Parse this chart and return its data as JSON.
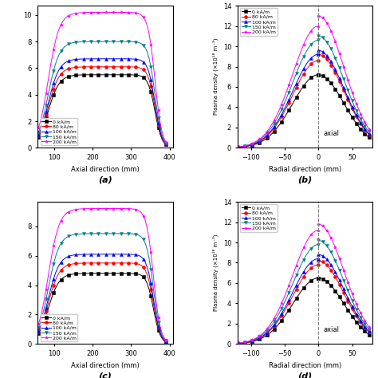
{
  "legend_labels": [
    "0 kA/m",
    "80 kA/m",
    "100 kA/m",
    "150 kA/m",
    "200 kA/m"
  ],
  "colors": [
    "black",
    "red",
    "blue",
    "teal",
    "magenta"
  ],
  "markers": [
    "s",
    "o",
    "^",
    "v",
    "*"
  ],
  "subplot_labels": [
    "(a)",
    "(b)",
    "(c)",
    "(d)"
  ],
  "axial_xlabel": "Axial direction (mm)",
  "radial_xlabel": "Radial direction (mm)",
  "radial_ylabel": "Plasma density (×10¹⁸ m⁻³)",
  "axial_label": "axial",
  "peaks_a": [
    5.5,
    6.1,
    6.7,
    8.0,
    10.2
  ],
  "peaks_c": [
    4.8,
    5.5,
    6.1,
    7.5,
    9.2
  ],
  "peaks_b_right": [
    7.2,
    9.2,
    9.6,
    11.0,
    13.0
  ],
  "peaks_b_left": [
    7.2,
    8.6,
    9.2,
    10.6,
    12.0
  ],
  "peaks_d_right": [
    6.5,
    8.2,
    8.8,
    10.2,
    11.8
  ],
  "peaks_d_left": [
    6.5,
    7.8,
    8.4,
    9.8,
    11.2
  ]
}
